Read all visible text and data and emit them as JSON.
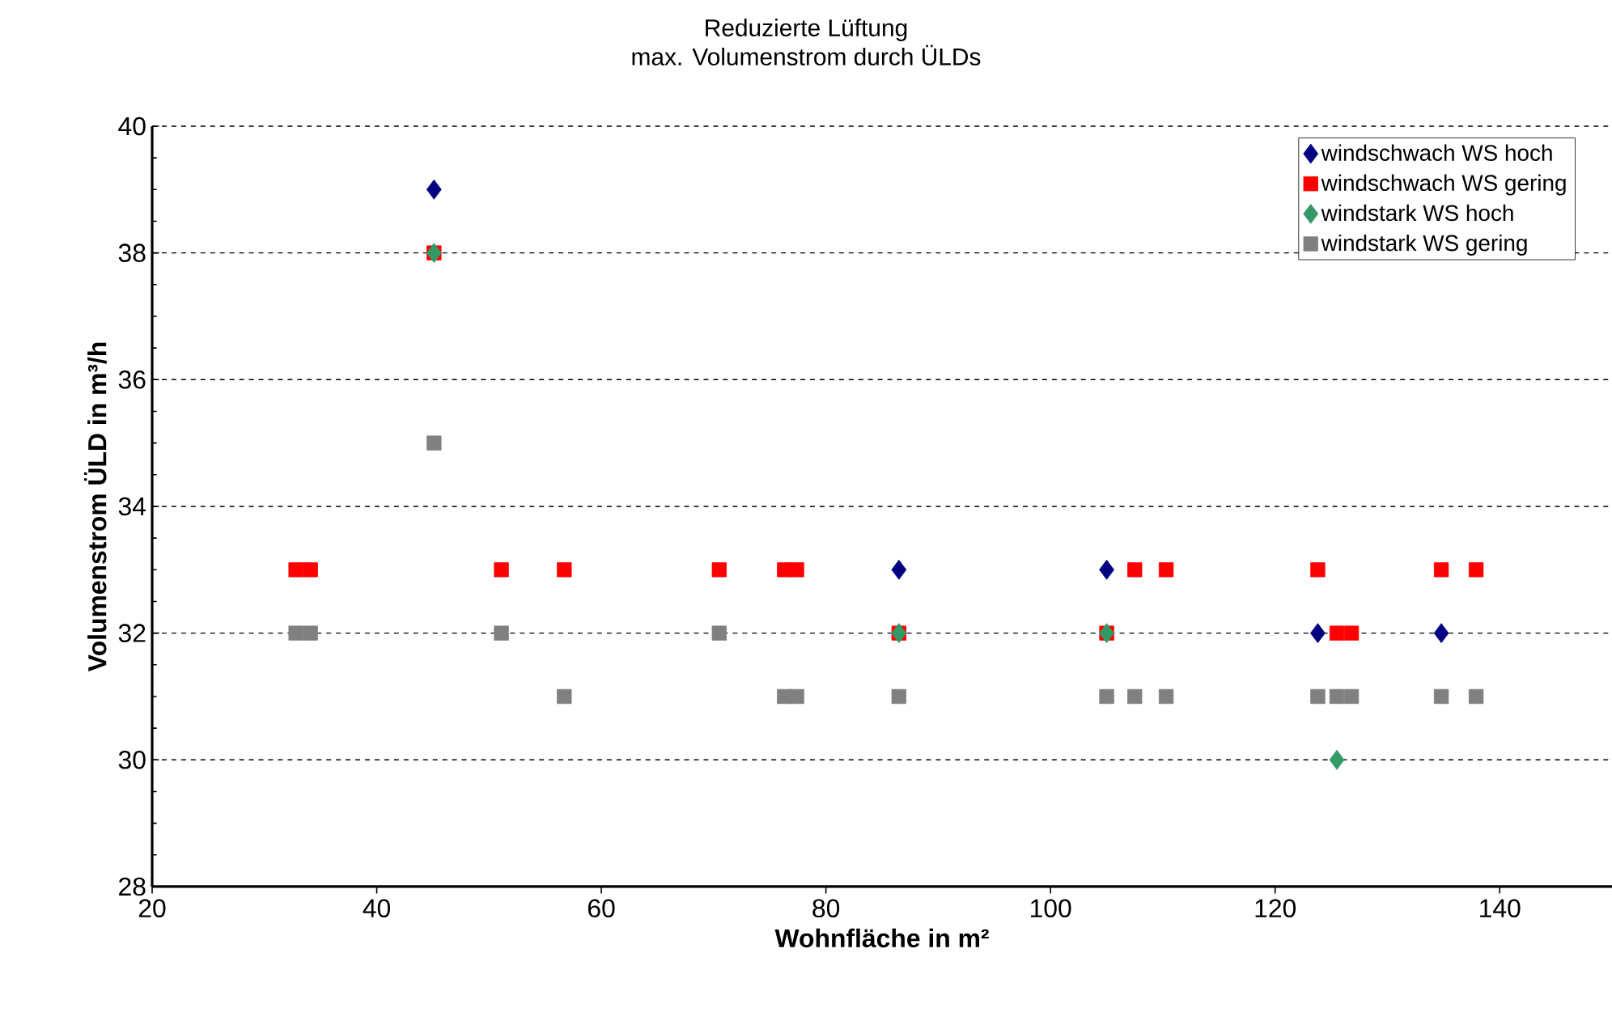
{
  "chart_data": {
    "type": "scatter",
    "title": "Reduzierte Lüftung",
    "subtitle": "max. Volumenstrom durch ÜLDs",
    "xlabel": "Wohnfläche in m²",
    "ylabel": "Volumenstrom ÜLD in m³/h",
    "xlim": [
      20,
      150
    ],
    "xticks": [
      20,
      40,
      60,
      80,
      100,
      120,
      140
    ],
    "ylim": [
      28,
      40
    ],
    "yticks": [
      28,
      30,
      32,
      34,
      36,
      38,
      40
    ],
    "grid": "y",
    "legend": "top right",
    "series": [
      {
        "name": "windschwach WS hoch",
        "color": "#000080",
        "marker": "diamond",
        "x": [
          45.1,
          86.5,
          105,
          123.8,
          134.8
        ],
        "values": [
          39,
          33,
          33,
          32,
          32
        ]
      },
      {
        "name": "windschwach WS gering",
        "color": "#ff0000",
        "marker": "square",
        "x": [
          32.8,
          34.1,
          45.1,
          51.1,
          56.7,
          70.5,
          76.3,
          77.4,
          86.5,
          105,
          107.5,
          110.3,
          123.8,
          125.5,
          126.8,
          134.8,
          137.9
        ],
        "values": [
          33,
          33,
          38,
          33,
          33,
          33,
          33,
          33,
          32,
          32,
          33,
          33,
          33,
          32,
          32,
          33,
          33
        ]
      },
      {
        "name": "windstark WS hoch",
        "color": "#339966",
        "marker": "diamond",
        "x": [
          45.1,
          86.5,
          105,
          125.5
        ],
        "values": [
          38,
          32,
          32,
          30
        ]
      },
      {
        "name": "windstark WS gering",
        "color": "#808080",
        "marker": "square",
        "x": [
          32.8,
          34.1,
          45.1,
          51.1,
          56.7,
          70.5,
          76.3,
          77.4,
          86.5,
          105,
          107.5,
          110.3,
          123.8,
          125.5,
          126.8,
          134.8,
          137.9
        ],
        "values": [
          32,
          32,
          35,
          32,
          31,
          32,
          31,
          31,
          31,
          31,
          31,
          31,
          31,
          31,
          31,
          31,
          31
        ]
      }
    ]
  }
}
